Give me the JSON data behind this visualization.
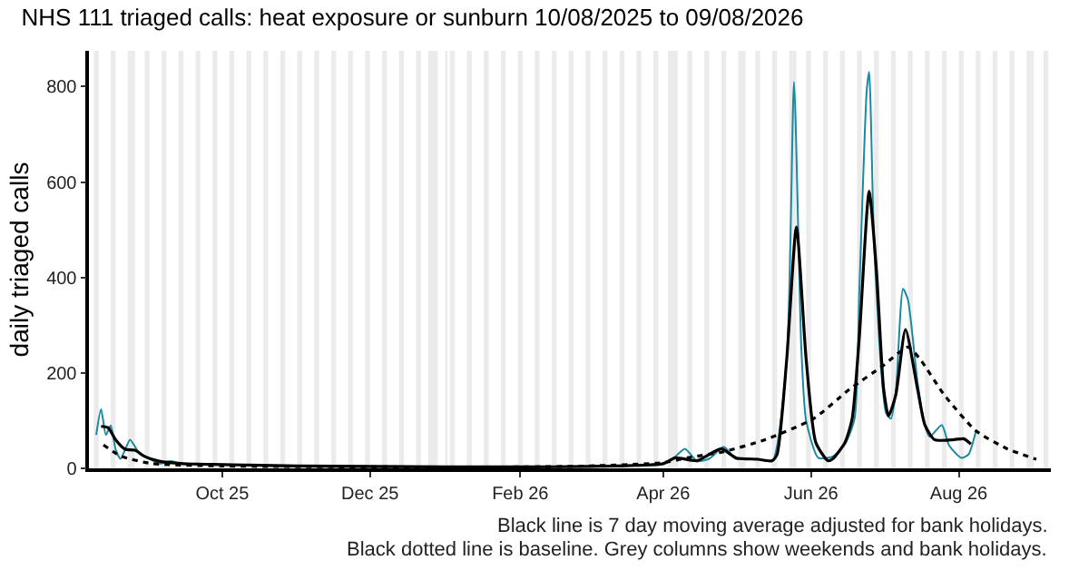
{
  "chart_data": {
    "type": "line",
    "title": "NHS 111 triaged calls: heat exposure or sunburn 10/08/2025 to 09/08/2026",
    "ylabel": "daily triaged calls",
    "annotations": [
      "Black line is 7 day moving average adjusted for bank holidays.",
      "Black dotted line is baseline. Grey columns show weekends and bank holidays."
    ],
    "xlim": [
      "2025-08-07",
      "2026-09-08"
    ],
    "xticks": [
      {
        "value": "2025-10-01",
        "label": "Oct 25"
      },
      {
        "value": "2025-12-01",
        "label": "Dec 25"
      },
      {
        "value": "2026-02-01",
        "label": "Feb 26"
      },
      {
        "value": "2026-04-01",
        "label": "Apr 26"
      },
      {
        "value": "2026-06-01",
        "label": "Jun 26"
      },
      {
        "value": "2026-08-01",
        "label": "Aug 26"
      }
    ],
    "ylim": [
      0,
      875
    ],
    "yticks": [
      0,
      200,
      400,
      600,
      800
    ],
    "grid": false,
    "series": [
      {
        "color": "#1a8aa0",
        "line_style": "solid",
        "x": [
          "2025-08-10",
          "2025-08-12",
          "2025-08-14",
          "2025-08-16",
          "2025-08-18",
          "2025-08-20",
          "2025-08-22",
          "2025-08-24",
          "2025-08-28",
          "2025-09-01",
          "2025-09-05",
          "2025-09-10",
          "2025-09-15",
          "2025-09-20",
          "2025-10-01",
          "2025-10-15",
          "2025-11-01",
          "2025-12-01",
          "2026-01-01",
          "2026-02-01",
          "2026-03-01",
          "2026-03-15",
          "2026-04-01",
          "2026-04-05",
          "2026-04-10",
          "2026-04-15",
          "2026-04-20",
          "2026-04-26",
          "2026-05-01",
          "2026-05-10",
          "2026-05-16",
          "2026-05-22",
          "2026-05-25",
          "2026-05-28",
          "2026-05-30",
          "2026-06-04",
          "2026-06-10",
          "2026-06-15",
          "2026-06-19",
          "2026-06-21",
          "2026-06-24",
          "2026-06-25",
          "2026-06-27",
          "2026-06-30",
          "2026-07-02",
          "2026-07-04",
          "2026-07-06",
          "2026-07-09",
          "2026-07-11",
          "2026-07-15",
          "2026-07-18",
          "2026-07-20",
          "2026-07-25",
          "2026-07-28",
          "2026-08-02",
          "2026-08-05",
          "2026-08-08"
        ],
        "values": [
          70,
          124,
          70,
          90,
          40,
          20,
          40,
          60,
          30,
          20,
          10,
          15,
          8,
          10,
          8,
          6,
          4,
          3,
          3,
          3,
          4,
          5,
          8,
          20,
          41,
          15,
          20,
          45,
          20,
          20,
          15,
          229,
          810,
          254,
          100,
          22,
          25,
          50,
          104,
          379,
          791,
          831,
          479,
          204,
          116,
          104,
          160,
          376,
          354,
          180,
          90,
          66,
          91,
          48,
          22,
          29,
          76
        ]
      },
      {
        "color": "#000000",
        "line_style": "solid",
        "x": [
          "2025-08-12",
          "2025-08-15",
          "2025-08-18",
          "2025-08-22",
          "2025-08-26",
          "2025-08-30",
          "2025-09-05",
          "2025-09-15",
          "2025-10-01",
          "2025-11-01",
          "2025-12-01",
          "2026-01-01",
          "2026-02-01",
          "2026-03-01",
          "2026-04-01",
          "2026-04-06",
          "2026-04-15",
          "2026-04-25",
          "2026-05-01",
          "2026-05-10",
          "2026-05-16",
          "2026-05-18",
          "2026-05-22",
          "2026-05-26",
          "2026-05-30",
          "2026-06-03",
          "2026-06-08",
          "2026-06-10",
          "2026-06-15",
          "2026-06-18",
          "2026-06-21",
          "2026-06-25",
          "2026-06-28",
          "2026-07-01",
          "2026-07-03",
          "2026-07-06",
          "2026-07-10",
          "2026-07-15",
          "2026-07-18",
          "2026-07-22",
          "2026-07-30",
          "2026-08-03",
          "2026-08-06"
        ],
        "values": [
          88,
          85,
          60,
          40,
          38,
          25,
          15,
          10,
          8,
          5,
          4,
          3,
          3,
          4,
          10,
          22,
          16,
          41,
          22,
          19,
          16,
          29,
          229,
          506,
          229,
          54,
          16,
          20,
          54,
          104,
          279,
          581,
          416,
          166,
          110,
          154,
          291,
          166,
          91,
          60,
          60,
          62,
          51
        ]
      },
      {
        "color": "#000000",
        "line_style": "dotted",
        "x": [
          "2025-08-13",
          "2025-08-20",
          "2025-09-02",
          "2025-10-01",
          "2025-12-01",
          "2026-02-01",
          "2026-03-01",
          "2026-04-01",
          "2026-04-11",
          "2026-04-26",
          "2026-05-13",
          "2026-06-02",
          "2026-06-17",
          "2026-07-01",
          "2026-07-11",
          "2026-07-16",
          "2026-07-26",
          "2026-08-08",
          "2026-08-21",
          "2026-09-02"
        ],
        "values": [
          49,
          26,
          10,
          5,
          3,
          3,
          5,
          12,
          22,
          35,
          60,
          104,
          166,
          216,
          254,
          229,
          154,
          79,
          41,
          19
        ]
      }
    ],
    "bands": [
      {
        "axis": "x",
        "from": "2025-08-09",
        "to": "2025-08-11"
      },
      {
        "axis": "x",
        "from": "2025-08-16",
        "to": "2025-08-18"
      },
      {
        "axis": "x",
        "from": "2025-08-23",
        "to": "2025-08-26"
      },
      {
        "axis": "x",
        "from": "2025-08-30",
        "to": "2025-09-01"
      },
      {
        "axis": "x",
        "from": "2025-09-06",
        "to": "2025-09-08"
      },
      {
        "axis": "x",
        "from": "2025-09-13",
        "to": "2025-09-15"
      },
      {
        "axis": "x",
        "from": "2025-09-20",
        "to": "2025-09-22"
      },
      {
        "axis": "x",
        "from": "2025-09-27",
        "to": "2025-09-29"
      },
      {
        "axis": "x",
        "from": "2025-10-04",
        "to": "2025-10-06"
      },
      {
        "axis": "x",
        "from": "2025-10-11",
        "to": "2025-10-13"
      },
      {
        "axis": "x",
        "from": "2025-10-18",
        "to": "2025-10-20"
      },
      {
        "axis": "x",
        "from": "2025-10-25",
        "to": "2025-10-27"
      },
      {
        "axis": "x",
        "from": "2025-11-01",
        "to": "2025-11-03"
      },
      {
        "axis": "x",
        "from": "2025-11-08",
        "to": "2025-11-10"
      },
      {
        "axis": "x",
        "from": "2025-11-15",
        "to": "2025-11-17"
      },
      {
        "axis": "x",
        "from": "2025-11-22",
        "to": "2025-11-24"
      },
      {
        "axis": "x",
        "from": "2025-11-29",
        "to": "2025-12-01"
      },
      {
        "axis": "x",
        "from": "2025-12-06",
        "to": "2025-12-08"
      },
      {
        "axis": "x",
        "from": "2025-12-13",
        "to": "2025-12-15"
      },
      {
        "axis": "x",
        "from": "2025-12-20",
        "to": "2025-12-22"
      },
      {
        "axis": "x",
        "from": "2025-12-25",
        "to": "2025-12-29"
      },
      {
        "axis": "x",
        "from": "2026-01-01",
        "to": "2026-01-02"
      },
      {
        "axis": "x",
        "from": "2026-01-03",
        "to": "2026-01-05"
      },
      {
        "axis": "x",
        "from": "2026-01-10",
        "to": "2026-01-12"
      },
      {
        "axis": "x",
        "from": "2026-01-17",
        "to": "2026-01-19"
      },
      {
        "axis": "x",
        "from": "2026-01-24",
        "to": "2026-01-26"
      },
      {
        "axis": "x",
        "from": "2026-01-31",
        "to": "2026-02-02"
      },
      {
        "axis": "x",
        "from": "2026-02-07",
        "to": "2026-02-09"
      },
      {
        "axis": "x",
        "from": "2026-02-14",
        "to": "2026-02-16"
      },
      {
        "axis": "x",
        "from": "2026-02-21",
        "to": "2026-02-23"
      },
      {
        "axis": "x",
        "from": "2026-02-28",
        "to": "2026-03-02"
      },
      {
        "axis": "x",
        "from": "2026-03-07",
        "to": "2026-03-09"
      },
      {
        "axis": "x",
        "from": "2026-03-14",
        "to": "2026-03-16"
      },
      {
        "axis": "x",
        "from": "2026-03-21",
        "to": "2026-03-23"
      },
      {
        "axis": "x",
        "from": "2026-03-28",
        "to": "2026-03-30"
      },
      {
        "axis": "x",
        "from": "2026-04-03",
        "to": "2026-04-07"
      },
      {
        "axis": "x",
        "from": "2026-04-11",
        "to": "2026-04-13"
      },
      {
        "axis": "x",
        "from": "2026-04-18",
        "to": "2026-04-20"
      },
      {
        "axis": "x",
        "from": "2026-04-25",
        "to": "2026-04-27"
      },
      {
        "axis": "x",
        "from": "2026-05-02",
        "to": "2026-05-05"
      },
      {
        "axis": "x",
        "from": "2026-05-09",
        "to": "2026-05-11"
      },
      {
        "axis": "x",
        "from": "2026-05-16",
        "to": "2026-05-18"
      },
      {
        "axis": "x",
        "from": "2026-05-23",
        "to": "2026-05-26"
      },
      {
        "axis": "x",
        "from": "2026-05-30",
        "to": "2026-06-01"
      },
      {
        "axis": "x",
        "from": "2026-06-06",
        "to": "2026-06-08"
      },
      {
        "axis": "x",
        "from": "2026-06-13",
        "to": "2026-06-15"
      },
      {
        "axis": "x",
        "from": "2026-06-20",
        "to": "2026-06-22"
      },
      {
        "axis": "x",
        "from": "2026-06-27",
        "to": "2026-06-29"
      },
      {
        "axis": "x",
        "from": "2026-07-04",
        "to": "2026-07-06"
      },
      {
        "axis": "x",
        "from": "2026-07-11",
        "to": "2026-07-13"
      },
      {
        "axis": "x",
        "from": "2026-07-18",
        "to": "2026-07-20"
      },
      {
        "axis": "x",
        "from": "2026-07-25",
        "to": "2026-07-27"
      },
      {
        "axis": "x",
        "from": "2026-08-01",
        "to": "2026-08-03"
      },
      {
        "axis": "x",
        "from": "2026-08-08",
        "to": "2026-08-10"
      },
      {
        "axis": "x",
        "from": "2026-08-15",
        "to": "2026-08-17"
      },
      {
        "axis": "x",
        "from": "2026-08-22",
        "to": "2026-08-24"
      },
      {
        "axis": "x",
        "from": "2026-08-29",
        "to": "2026-09-01"
      },
      {
        "axis": "x",
        "from": "2026-09-05",
        "to": "2026-09-07"
      }
    ]
  }
}
